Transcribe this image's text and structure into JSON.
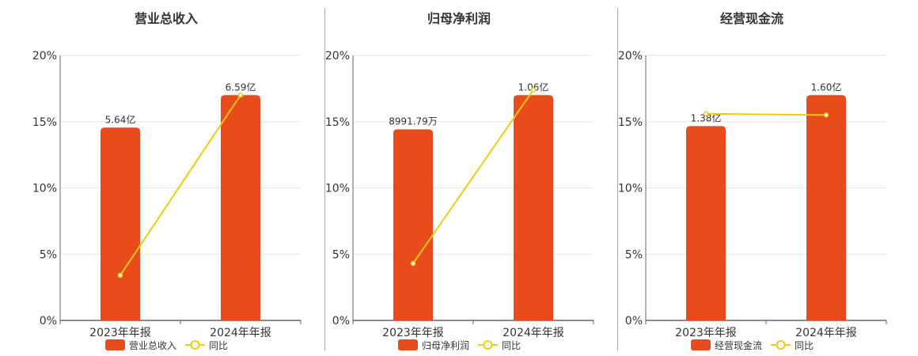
{
  "colors": {
    "bar": "#e84c1b",
    "line": "#f2cb11",
    "grid": "#e3e6f0",
    "axis": "#666666",
    "text": "#333333"
  },
  "chart_data": [
    {
      "type": "bar+line",
      "title": "营业总收入",
      "categories": [
        "2023年年报",
        "2024年年报"
      ],
      "yaxis": {
        "ticks": [
          "0%",
          "5%",
          "10%",
          "15%",
          "20%"
        ],
        "range": [
          0,
          20
        ]
      },
      "grid": true,
      "legend_position": "bottom",
      "series": [
        {
          "name": "营业总收入",
          "type": "bar",
          "values": [
            5.64,
            6.59
          ],
          "labels": [
            "5.64亿",
            "6.59亿"
          ]
        },
        {
          "name": "同比",
          "type": "line",
          "values": [
            3.4,
            17.0
          ]
        }
      ]
    },
    {
      "type": "bar+line",
      "title": "归母净利润",
      "categories": [
        "2023年年报",
        "2024年年报"
      ],
      "yaxis": {
        "ticks": [
          "0%",
          "5%",
          "10%",
          "15%",
          "20%"
        ],
        "range": [
          0,
          20
        ]
      },
      "grid": true,
      "legend_position": "bottom",
      "series": [
        {
          "name": "归母净利润",
          "type": "bar",
          "values": [
            0.899179,
            1.06
          ],
          "labels": [
            "8991.79万",
            "1.06亿"
          ]
        },
        {
          "name": "同比",
          "type": "line",
          "values": [
            4.3,
            17.4
          ]
        }
      ]
    },
    {
      "type": "bar+line",
      "title": "经营现金流",
      "categories": [
        "2023年年报",
        "2024年年报"
      ],
      "yaxis": {
        "ticks": [
          "0%",
          "5%",
          "10%",
          "15%",
          "20%"
        ],
        "range": [
          0,
          20
        ]
      },
      "grid": true,
      "legend_position": "bottom",
      "series": [
        {
          "name": "经营现金流",
          "type": "bar",
          "values": [
            1.38,
            1.6
          ],
          "labels": [
            "1.38亿",
            "1.60亿"
          ]
        },
        {
          "name": "同比",
          "type": "line",
          "values": [
            15.6,
            15.5
          ]
        }
      ]
    }
  ]
}
